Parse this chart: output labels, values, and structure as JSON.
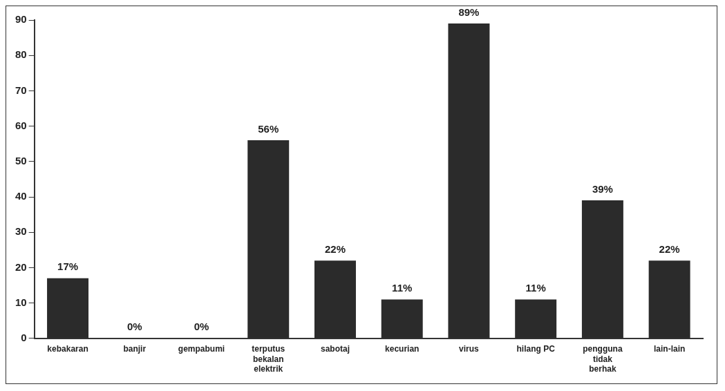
{
  "chart_data": {
    "type": "bar",
    "categories": [
      "kebakaran",
      "banjir",
      "gempabumi",
      "terputus\nbekalan\nelektrik",
      "sabotaj",
      "kecurian",
      "virus",
      "hilang PC",
      "pengguna\ntidak\nberhak",
      "lain-lain"
    ],
    "series": [
      {
        "color": "#2b2b2b",
        "values": [
          17,
          0,
          0,
          56,
          22,
          11,
          89,
          11,
          39,
          22
        ],
        "value_labels": [
          "17%",
          "0%",
          "0%",
          "56%",
          "22%",
          "11%",
          "89%",
          "11%",
          "39%",
          "22%"
        ]
      }
    ],
    "ylim": [
      0,
      90
    ],
    "yticks": [
      0,
      10,
      20,
      30,
      40,
      50,
      60,
      70,
      80,
      90
    ],
    "grid": false,
    "legend": false
  }
}
